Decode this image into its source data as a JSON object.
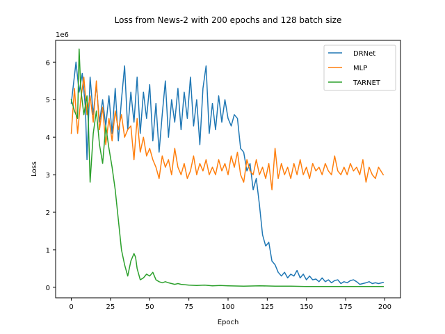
{
  "chart_data": {
    "type": "line",
    "title": "Loss from News-2 with 200 epochs and 128 batch size",
    "xlabel": "Epoch",
    "ylabel": "Loss",
    "y_offset_label": "1e6",
    "xlim": [
      -10,
      210
    ],
    "ylim": [
      -0.28,
      6.58
    ],
    "x_ticks": [
      0,
      25,
      50,
      75,
      100,
      125,
      150,
      175,
      200
    ],
    "y_ticks": [
      0,
      1,
      2,
      3,
      4,
      5,
      6
    ],
    "grid": false,
    "legend_position": "top-right",
    "series": [
      {
        "name": "DRNet",
        "color": "#1f77b4",
        "points": [
          [
            0,
            4.9
          ],
          [
            3,
            6.0
          ],
          [
            5,
            5.2
          ],
          [
            7,
            5.7
          ],
          [
            9,
            4.8
          ],
          [
            10,
            3.4
          ],
          [
            12,
            5.6
          ],
          [
            14,
            4.6
          ],
          [
            16,
            5.4
          ],
          [
            18,
            4.4
          ],
          [
            20,
            5.0
          ],
          [
            22,
            4.3
          ],
          [
            24,
            5.1
          ],
          [
            26,
            4.1
          ],
          [
            28,
            5.3
          ],
          [
            30,
            3.9
          ],
          [
            32,
            5.0
          ],
          [
            34,
            5.9
          ],
          [
            36,
            4.2
          ],
          [
            38,
            5.2
          ],
          [
            40,
            4.4
          ],
          [
            42,
            5.6
          ],
          [
            44,
            4.1
          ],
          [
            46,
            5.2
          ],
          [
            48,
            4.5
          ],
          [
            50,
            5.4
          ],
          [
            52,
            3.9
          ],
          [
            54,
            4.9
          ],
          [
            56,
            3.6
          ],
          [
            58,
            4.6
          ],
          [
            60,
            5.5
          ],
          [
            62,
            4.0
          ],
          [
            64,
            5.0
          ],
          [
            66,
            4.4
          ],
          [
            68,
            5.3
          ],
          [
            70,
            4.2
          ],
          [
            72,
            5.2
          ],
          [
            74,
            4.5
          ],
          [
            76,
            5.6
          ],
          [
            78,
            4.3
          ],
          [
            80,
            5.0
          ],
          [
            82,
            3.8
          ],
          [
            84,
            5.3
          ],
          [
            86,
            5.9
          ],
          [
            88,
            4.1
          ],
          [
            90,
            4.9
          ],
          [
            92,
            4.2
          ],
          [
            94,
            5.1
          ],
          [
            96,
            4.4
          ],
          [
            98,
            5.0
          ],
          [
            100,
            4.5
          ],
          [
            102,
            4.3
          ],
          [
            104,
            4.6
          ],
          [
            106,
            4.5
          ],
          [
            108,
            3.7
          ],
          [
            110,
            3.6
          ],
          [
            112,
            3.1
          ],
          [
            114,
            3.3
          ],
          [
            116,
            2.6
          ],
          [
            118,
            2.9
          ],
          [
            120,
            2.2
          ],
          [
            122,
            1.4
          ],
          [
            124,
            1.1
          ],
          [
            126,
            1.2
          ],
          [
            128,
            0.7
          ],
          [
            130,
            0.6
          ],
          [
            132,
            0.4
          ],
          [
            134,
            0.3
          ],
          [
            136,
            0.4
          ],
          [
            138,
            0.25
          ],
          [
            140,
            0.35
          ],
          [
            142,
            0.3
          ],
          [
            144,
            0.45
          ],
          [
            146,
            0.25
          ],
          [
            148,
            0.35
          ],
          [
            150,
            0.2
          ],
          [
            152,
            0.3
          ],
          [
            154,
            0.2
          ],
          [
            156,
            0.22
          ],
          [
            158,
            0.15
          ],
          [
            160,
            0.25
          ],
          [
            162,
            0.15
          ],
          [
            164,
            0.2
          ],
          [
            166,
            0.12
          ],
          [
            168,
            0.18
          ],
          [
            170,
            0.2
          ],
          [
            172,
            0.1
          ],
          [
            174,
            0.15
          ],
          [
            176,
            0.12
          ],
          [
            178,
            0.18
          ],
          [
            180,
            0.2
          ],
          [
            182,
            0.15
          ],
          [
            184,
            0.08
          ],
          [
            186,
            0.1
          ],
          [
            188,
            0.12
          ],
          [
            190,
            0.15
          ],
          [
            192,
            0.1
          ],
          [
            194,
            0.12
          ],
          [
            196,
            0.1
          ],
          [
            199,
            0.13
          ]
        ]
      },
      {
        "name": "MLP",
        "color": "#ff7f0e",
        "points": [
          [
            0,
            4.1
          ],
          [
            2,
            5.3
          ],
          [
            4,
            4.1
          ],
          [
            6,
            5.0
          ],
          [
            8,
            5.6
          ],
          [
            10,
            4.6
          ],
          [
            12,
            5.1
          ],
          [
            14,
            4.4
          ],
          [
            16,
            5.5
          ],
          [
            18,
            4.2
          ],
          [
            20,
            4.8
          ],
          [
            22,
            3.8
          ],
          [
            24,
            4.5
          ],
          [
            26,
            3.9
          ],
          [
            28,
            4.7
          ],
          [
            30,
            4.2
          ],
          [
            32,
            4.6
          ],
          [
            34,
            4.0
          ],
          [
            36,
            4.2
          ],
          [
            38,
            4.3
          ],
          [
            40,
            3.4
          ],
          [
            42,
            4.5
          ],
          [
            44,
            3.6
          ],
          [
            46,
            4.0
          ],
          [
            48,
            3.5
          ],
          [
            50,
            3.7
          ],
          [
            52,
            3.4
          ],
          [
            54,
            3.2
          ],
          [
            56,
            2.9
          ],
          [
            58,
            3.5
          ],
          [
            60,
            3.2
          ],
          [
            62,
            3.4
          ],
          [
            64,
            3.0
          ],
          [
            66,
            3.7
          ],
          [
            68,
            3.2
          ],
          [
            70,
            3.0
          ],
          [
            72,
            3.3
          ],
          [
            74,
            2.9
          ],
          [
            76,
            3.1
          ],
          [
            78,
            3.5
          ],
          [
            80,
            3.0
          ],
          [
            82,
            3.3
          ],
          [
            84,
            3.1
          ],
          [
            86,
            3.4
          ],
          [
            88,
            3.0
          ],
          [
            90,
            3.2
          ],
          [
            92,
            3.0
          ],
          [
            94,
            3.4
          ],
          [
            96,
            3.1
          ],
          [
            98,
            3.3
          ],
          [
            100,
            3.0
          ],
          [
            102,
            3.5
          ],
          [
            104,
            3.2
          ],
          [
            106,
            3.6
          ],
          [
            108,
            3.0
          ],
          [
            110,
            2.8
          ],
          [
            112,
            3.4
          ],
          [
            114,
            3.1
          ],
          [
            116,
            3.0
          ],
          [
            118,
            3.4
          ],
          [
            120,
            3.0
          ],
          [
            122,
            3.2
          ],
          [
            124,
            2.9
          ],
          [
            126,
            3.3
          ],
          [
            128,
            2.6
          ],
          [
            130,
            3.7
          ],
          [
            132,
            2.9
          ],
          [
            134,
            3.3
          ],
          [
            136,
            3.0
          ],
          [
            138,
            3.2
          ],
          [
            140,
            2.9
          ],
          [
            142,
            3.3
          ],
          [
            144,
            3.0
          ],
          [
            146,
            3.4
          ],
          [
            148,
            3.0
          ],
          [
            150,
            3.2
          ],
          [
            152,
            2.9
          ],
          [
            154,
            3.3
          ],
          [
            156,
            3.1
          ],
          [
            158,
            3.2
          ],
          [
            160,
            3.0
          ],
          [
            162,
            3.3
          ],
          [
            164,
            3.1
          ],
          [
            166,
            3.0
          ],
          [
            168,
            3.5
          ],
          [
            170,
            3.1
          ],
          [
            172,
            3.0
          ],
          [
            174,
            3.2
          ],
          [
            176,
            3.0
          ],
          [
            178,
            3.3
          ],
          [
            180,
            3.1
          ],
          [
            182,
            3.2
          ],
          [
            184,
            3.0
          ],
          [
            186,
            3.4
          ],
          [
            188,
            2.8
          ],
          [
            190,
            3.2
          ],
          [
            192,
            3.0
          ],
          [
            194,
            2.9
          ],
          [
            196,
            3.2
          ],
          [
            199,
            3.0
          ]
        ]
      },
      {
        "name": "TARNET",
        "color": "#2ca02c",
        "points": [
          [
            0,
            5.0
          ],
          [
            2,
            4.7
          ],
          [
            4,
            4.5
          ],
          [
            5,
            6.35
          ],
          [
            6,
            5.3
          ],
          [
            8,
            4.6
          ],
          [
            10,
            5.1
          ],
          [
            11,
            4.3
          ],
          [
            12,
            2.8
          ],
          [
            14,
            4.1
          ],
          [
            16,
            4.7
          ],
          [
            18,
            3.8
          ],
          [
            20,
            3.3
          ],
          [
            22,
            4.3
          ],
          [
            24,
            3.7
          ],
          [
            26,
            3.2
          ],
          [
            28,
            2.6
          ],
          [
            30,
            1.8
          ],
          [
            32,
            1.0
          ],
          [
            34,
            0.6
          ],
          [
            36,
            0.3
          ],
          [
            38,
            0.7
          ],
          [
            40,
            0.9
          ],
          [
            41,
            0.8
          ],
          [
            42,
            0.5
          ],
          [
            44,
            0.2
          ],
          [
            46,
            0.25
          ],
          [
            48,
            0.35
          ],
          [
            50,
            0.3
          ],
          [
            52,
            0.4
          ],
          [
            54,
            0.2
          ],
          [
            56,
            0.15
          ],
          [
            58,
            0.12
          ],
          [
            60,
            0.15
          ],
          [
            62,
            0.12
          ],
          [
            64,
            0.1
          ],
          [
            66,
            0.08
          ],
          [
            68,
            0.1
          ],
          [
            70,
            0.08
          ],
          [
            75,
            0.06
          ],
          [
            80,
            0.05
          ],
          [
            85,
            0.06
          ],
          [
            90,
            0.04
          ],
          [
            95,
            0.05
          ],
          [
            100,
            0.04
          ],
          [
            110,
            0.03
          ],
          [
            120,
            0.04
          ],
          [
            130,
            0.03
          ],
          [
            140,
            0.03
          ],
          [
            150,
            0.02
          ],
          [
            160,
            0.02
          ],
          [
            170,
            0.02
          ],
          [
            180,
            0.02
          ],
          [
            190,
            0.02
          ],
          [
            199,
            0.02
          ]
        ]
      }
    ]
  }
}
